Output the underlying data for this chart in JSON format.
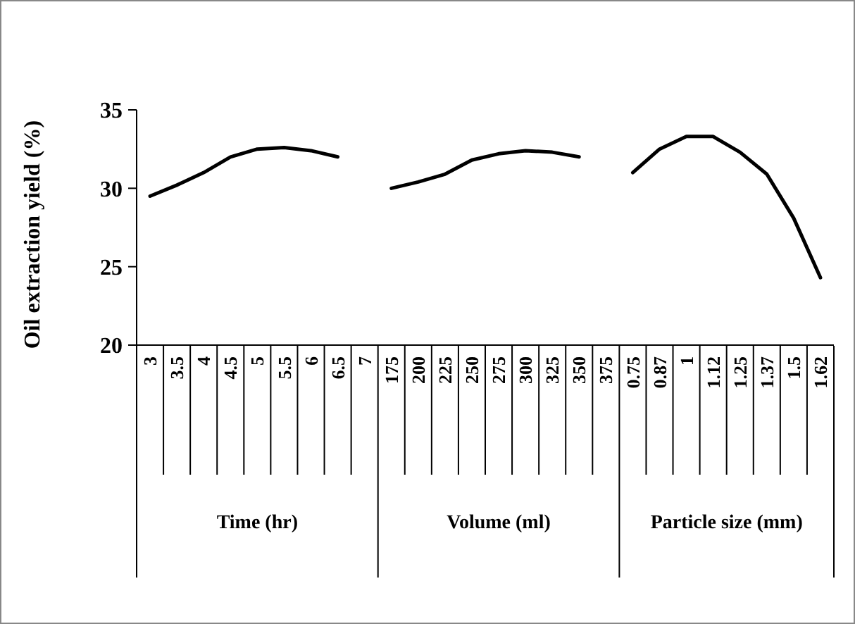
{
  "chart_data": {
    "type": "line",
    "ylabel": "Oil extraction yield  (%)",
    "categories": [
      "3",
      "3.5",
      "4",
      "4.5",
      "5",
      "5.5",
      "6",
      "6.5",
      "7",
      "175",
      "200",
      "225",
      "250",
      "275",
      "300",
      "325",
      "350",
      "375",
      "0.75",
      "0.87",
      "1",
      "1.12",
      "1.25",
      "1.37",
      "1.5",
      "1.62"
    ],
    "series": [
      {
        "color": "#000000",
        "values": [
          29.5,
          30.2,
          31.0,
          32.0,
          32.5,
          32.6,
          32.4,
          32.0,
          null,
          null,
          null,
          null,
          null,
          null,
          null,
          null,
          null,
          null,
          null,
          null,
          null,
          null,
          null,
          null,
          null,
          null
        ]
      },
      {
        "color": "#000000",
        "values": [
          null,
          null,
          null,
          null,
          null,
          null,
          null,
          null,
          null,
          30.0,
          30.4,
          30.9,
          31.8,
          32.2,
          32.4,
          32.3,
          32.0,
          null,
          null,
          null,
          null,
          null,
          null,
          null,
          null,
          null
        ]
      },
      {
        "color": "#000000",
        "values": [
          null,
          null,
          null,
          null,
          null,
          null,
          null,
          null,
          null,
          null,
          null,
          null,
          null,
          null,
          null,
          null,
          null,
          null,
          31.0,
          32.5,
          33.3,
          33.3,
          32.3,
          30.9,
          28.1,
          24.3
        ]
      }
    ],
    "annotations": [
      "Time (hr)",
      "Volume (ml)",
      "Particle size (mm)"
    ],
    "ylim": [
      20,
      35
    ],
    "yticks": [
      20,
      25,
      30,
      35
    ],
    "grid": false,
    "marker": "none",
    "line_style": "solid"
  }
}
